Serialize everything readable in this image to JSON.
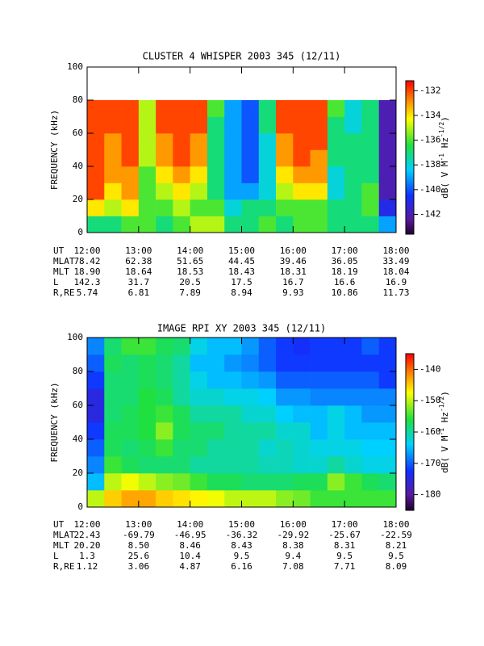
{
  "chart_data": [
    {
      "type": "heatmap",
      "title": "CLUSTER 4 WHISPER 2003 345 (12/11)",
      "ylabel": "FREQUENCY (kHz)",
      "colorbar_label": [
        "dB( V M",
        "-1",
        " Hz",
        "-1/2",
        ")"
      ],
      "xlim": [
        720,
        1080
      ],
      "xticks": [
        {
          "value": 720,
          "label": "12:00"
        },
        {
          "value": 780,
          "label": "13:00"
        },
        {
          "value": 840,
          "label": "14:00"
        },
        {
          "value": 900,
          "label": "15:00"
        },
        {
          "value": 960,
          "label": "16:00"
        },
        {
          "value": 1020,
          "label": "17:00"
        },
        {
          "value": 1080,
          "label": "18:00"
        }
      ],
      "ylim": [
        0,
        100
      ],
      "yticks": [
        0,
        20,
        40,
        60,
        80,
        100
      ],
      "zlim": [
        -143.6,
        -131.2
      ],
      "zticks": [
        -132,
        -134,
        -136,
        -138,
        -140,
        -142
      ],
      "xbins": [
        720,
        740,
        760,
        780,
        800,
        820,
        840,
        860,
        880,
        900,
        920,
        940,
        960,
        980,
        1000,
        1020,
        1040,
        1060,
        1080
      ],
      "ybins": [
        0,
        10,
        20,
        30,
        40,
        50,
        60,
        70,
        80
      ],
      "z": [
        [
          -137,
          -137,
          -136,
          -136,
          -137,
          -136,
          -135,
          -135,
          -137,
          -137,
          -136,
          -137,
          -136,
          -136,
          -137,
          -137,
          -137,
          -139
        ],
        [
          -134,
          -135,
          -134,
          -136,
          -136,
          -135,
          -136,
          -136,
          -138,
          -137,
          -137,
          -136,
          -136,
          -136,
          -137,
          -137,
          -136,
          -141
        ],
        [
          -132,
          -134,
          -133,
          -136,
          -135,
          -134,
          -135,
          -137,
          -139,
          -139,
          -138,
          -135,
          -134,
          -134,
          -138,
          -137,
          -136,
          -142
        ],
        [
          -132,
          -133,
          -133,
          -136,
          -134,
          -133,
          -134,
          -137,
          -139,
          -140,
          -138,
          -134,
          -133,
          -133,
          -138,
          -137,
          -137,
          -142
        ],
        [
          -132,
          -133,
          -132,
          -135,
          -133,
          -132,
          -133,
          -137,
          -139,
          -140,
          -138,
          -133,
          -132,
          -133,
          -137,
          -137,
          -137,
          -142
        ],
        [
          -132,
          -133,
          -132,
          -135,
          -133,
          -132,
          -133,
          -137,
          -139,
          -140,
          -138,
          -133,
          -132,
          -132,
          -137,
          -137,
          -137,
          -142
        ],
        [
          -132,
          -132,
          -132,
          -135,
          -132,
          -132,
          -132,
          -137,
          -139,
          -140,
          -137,
          -132,
          -132,
          -132,
          -137,
          -138,
          -137,
          -142
        ],
        [
          -132,
          -132,
          -132,
          -135,
          -132,
          -132,
          -132,
          -136,
          -139,
          -140,
          -137,
          -132,
          -132,
          -132,
          -136,
          -138,
          -137,
          -142
        ]
      ],
      "ephemeris": {
        "labels": [
          "UT",
          "MLAT",
          "MLT",
          "L",
          "R,RE"
        ],
        "rows": [
          [
            "78.42",
            "62.38",
            "51.65",
            "44.45",
            "39.46",
            "36.05",
            "33.49"
          ],
          [
            "18.90",
            "18.64",
            "18.53",
            "18.43",
            "18.31",
            "18.19",
            "18.04"
          ],
          [
            "142.3",
            "31.7",
            "20.5",
            "17.5",
            "16.7",
            "16.6",
            "16.9"
          ],
          [
            "5.74",
            "6.81",
            "7.89",
            "8.94",
            "9.93",
            "10.86",
            "11.73"
          ]
        ]
      }
    },
    {
      "type": "heatmap",
      "title": "IMAGE RPI XY 2003 345 (12/11)",
      "ylabel": "FREQUENCY (kHz)",
      "colorbar_label": [
        "dB( V M",
        "-1",
        " Hz",
        "-1/2",
        ")"
      ],
      "xlim": [
        720,
        1080
      ],
      "xticks": [
        {
          "value": 720,
          "label": "12:00"
        },
        {
          "value": 780,
          "label": "13:00"
        },
        {
          "value": 840,
          "label": "14:00"
        },
        {
          "value": 900,
          "label": "15:00"
        },
        {
          "value": 960,
          "label": "16:00"
        },
        {
          "value": 1020,
          "label": "17:00"
        },
        {
          "value": 1080,
          "label": "18:00"
        }
      ],
      "ylim": [
        0,
        100
      ],
      "yticks": [
        0,
        20,
        40,
        60,
        80,
        100
      ],
      "zlim": [
        -185,
        -135
      ],
      "zticks": [
        -140,
        -150,
        -160,
        -170,
        -180
      ],
      "xbins": [
        720,
        740,
        760,
        780,
        800,
        820,
        840,
        860,
        880,
        900,
        920,
        940,
        960,
        980,
        1000,
        1020,
        1040,
        1060,
        1080
      ],
      "ybins": [
        0,
        10,
        20,
        30,
        40,
        50,
        60,
        70,
        80,
        90,
        100
      ],
      "z": [
        [
          -150,
          -145,
          -143,
          -143,
          -145,
          -146,
          -147,
          -148,
          -150,
          -150,
          -150,
          -152,
          -153,
          -155,
          -155,
          -155,
          -155,
          -155
        ],
        [
          -165,
          -150,
          -148,
          -150,
          -152,
          -153,
          -155,
          -157,
          -157,
          -158,
          -158,
          -158,
          -157,
          -157,
          -152,
          -155,
          -157,
          -158
        ],
        [
          -168,
          -155,
          -157,
          -158,
          -158,
          -158,
          -160,
          -160,
          -160,
          -160,
          -161,
          -161,
          -162,
          -162,
          -160,
          -162,
          -163,
          -163
        ],
        [
          -170,
          -157,
          -158,
          -157,
          -155,
          -158,
          -158,
          -160,
          -160,
          -160,
          -162,
          -161,
          -162,
          -163,
          -163,
          -163,
          -164,
          -164
        ],
        [
          -172,
          -157,
          -157,
          -156,
          -152,
          -157,
          -158,
          -158,
          -160,
          -160,
          -160,
          -162,
          -162,
          -165,
          -163,
          -165,
          -165,
          -165
        ],
        [
          -175,
          -158,
          -157,
          -156,
          -155,
          -157,
          -160,
          -160,
          -160,
          -162,
          -162,
          -164,
          -165,
          -165,
          -163,
          -165,
          -167,
          -167
        ],
        [
          -175,
          -158,
          -158,
          -156,
          -157,
          -160,
          -162,
          -162,
          -163,
          -163,
          -164,
          -167,
          -167,
          -168,
          -168,
          -168,
          -168,
          -168
        ],
        [
          -172,
          -158,
          -158,
          -157,
          -158,
          -160,
          -163,
          -165,
          -165,
          -166,
          -167,
          -170,
          -170,
          -170,
          -170,
          -170,
          -170,
          -172
        ],
        [
          -170,
          -157,
          -158,
          -157,
          -158,
          -160,
          -165,
          -165,
          -167,
          -168,
          -170,
          -172,
          -172,
          -172,
          -172,
          -172,
          -172,
          -172
        ],
        [
          -168,
          -158,
          -155,
          -155,
          -157,
          -158,
          -163,
          -165,
          -165,
          -167,
          -170,
          -172,
          -173,
          -172,
          -172,
          -172,
          -170,
          -172
        ]
      ],
      "ephemeris": {
        "labels": [
          "UT",
          "MLAT",
          "MLT",
          "L",
          "R,RE"
        ],
        "rows": [
          [
            "22.43",
            "-69.79",
            "-46.95",
            "-36.32",
            "-29.92",
            "-25.67",
            "-22.59"
          ],
          [
            "20.20",
            "8.50",
            "8.46",
            "8.43",
            "8.38",
            "8.31",
            "8.21"
          ],
          [
            "1.3",
            "25.6",
            "10.4",
            "9.5",
            "9.4",
            "9.5",
            "9.5"
          ],
          [
            "1.12",
            "3.06",
            "4.87",
            "6.16",
            "7.08",
            "7.71",
            "8.09"
          ]
        ]
      }
    }
  ]
}
